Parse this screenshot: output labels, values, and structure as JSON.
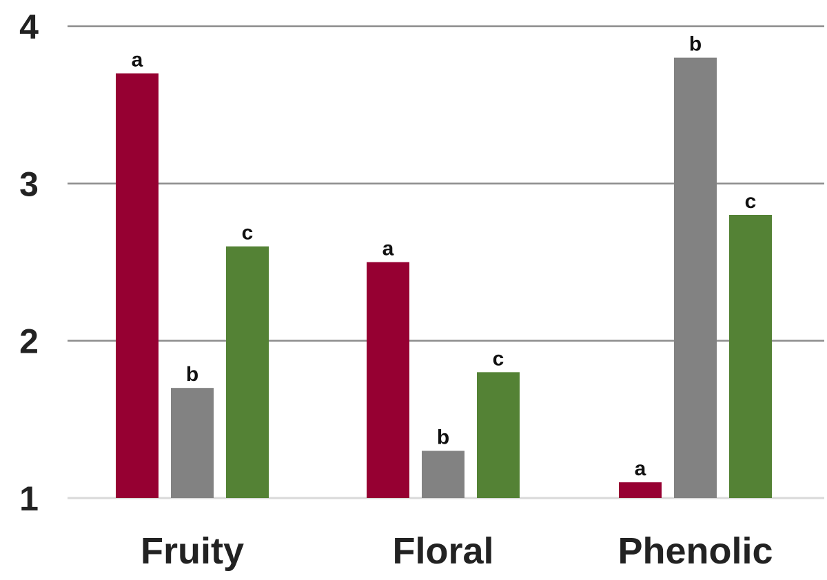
{
  "chart_data": {
    "type": "bar",
    "categories": [
      "Fruity",
      "Floral",
      "Phenolic"
    ],
    "series": [
      {
        "values": [
          3.7,
          2.5,
          1.1
        ],
        "labels": [
          "a",
          "a",
          "a"
        ],
        "color": "#960032"
      },
      {
        "values": [
          1.7,
          1.3,
          3.8
        ],
        "labels": [
          "b",
          "b",
          "b"
        ],
        "color": "#828282"
      },
      {
        "values": [
          2.6,
          1.8,
          2.8
        ],
        "labels": [
          "c",
          "c",
          "c"
        ],
        "color": "#548235"
      }
    ],
    "yticks": [
      "1",
      "2",
      "3",
      "4"
    ],
    "ylim": [
      1,
      4
    ],
    "grid": true,
    "gridline_color": "#8c8c8c",
    "title": "",
    "xlabel": "",
    "ylabel": ""
  }
}
